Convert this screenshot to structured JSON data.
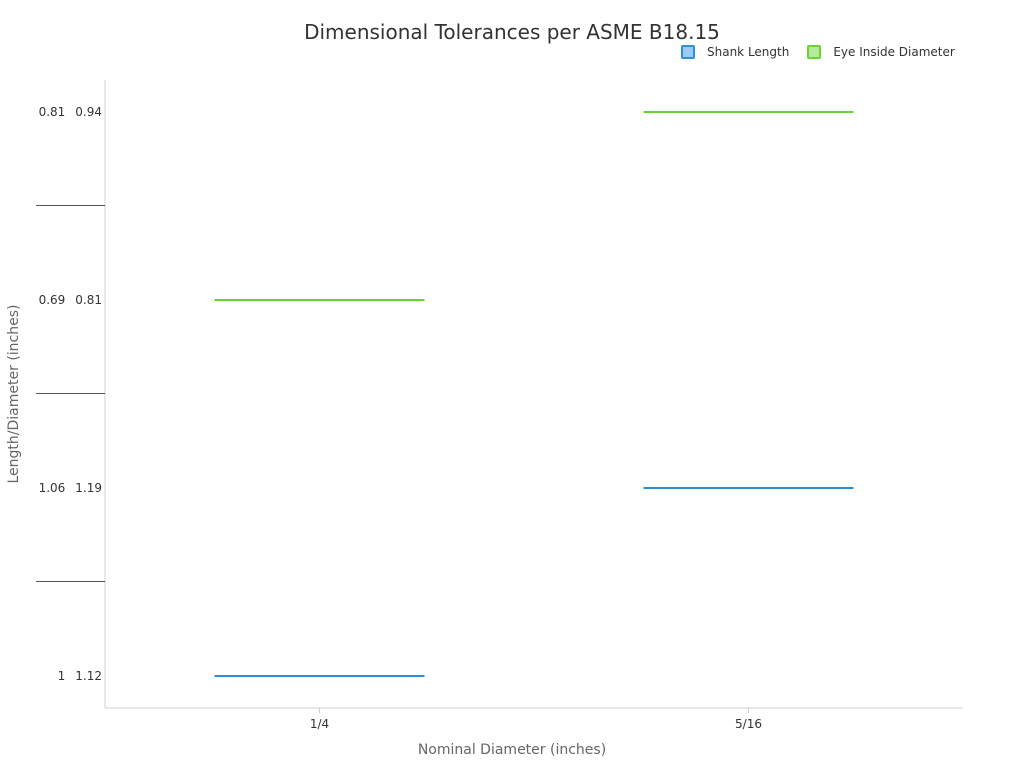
{
  "chart_data": {
    "type": "bar",
    "title": "Dimensional Tolerances per ASME B18.15",
    "xlabel": "Nominal Diameter (inches)",
    "ylabel": "Length/Diameter (inches)",
    "categories": [
      "1/4",
      "5/16"
    ],
    "legend_position": "top-right",
    "y_tick_rows": [
      [
        "1",
        "1.12"
      ],
      [
        "1.06",
        "1.19"
      ],
      [
        "0.69",
        "0.81"
      ],
      [
        "0.81",
        "0.94"
      ]
    ],
    "series": [
      {
        "name": "Shank Length",
        "color": "#2e8fd8",
        "fill": "#9ccbef",
        "values": [
          {
            "category": "1/4",
            "min": 1,
            "max": 1.12
          },
          {
            "category": "5/16",
            "min": 1.06,
            "max": 1.19
          }
        ]
      },
      {
        "name": "Eye Inside Diameter",
        "color": "#6ad333",
        "fill": "#b5ea98",
        "values": [
          {
            "category": "1/4",
            "min": 0.69,
            "max": 0.81
          },
          {
            "category": "5/16",
            "min": 0.81,
            "max": 0.94
          }
        ]
      }
    ],
    "grid": false
  }
}
